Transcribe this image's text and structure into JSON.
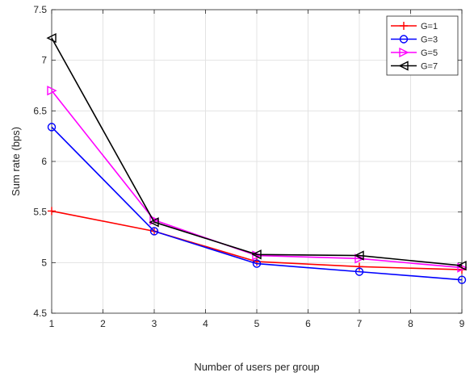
{
  "chart_data": {
    "type": "line",
    "title": "",
    "xlabel": "Number of users per group",
    "ylabel": "Sum rate (bps)",
    "xlim": [
      1,
      9
    ],
    "ylim": [
      4.5,
      7.5
    ],
    "xticks": [
      1,
      2,
      3,
      4,
      5,
      6,
      7,
      8,
      9
    ],
    "yticks": [
      4.5,
      5,
      5.5,
      6,
      6.5,
      7,
      7.5
    ],
    "x": [
      1,
      3,
      5,
      7,
      9
    ],
    "grid": true,
    "legend_position": "top-right",
    "series": [
      {
        "name": "G=1",
        "color": "#ff0000",
        "marker": "plus",
        "values": [
          5.51,
          5.31,
          5.01,
          4.96,
          4.93
        ]
      },
      {
        "name": "G=3",
        "color": "#0000ff",
        "marker": "circle",
        "values": [
          6.34,
          5.31,
          4.99,
          4.91,
          4.83
        ]
      },
      {
        "name": "G=5",
        "color": "#ff00ff",
        "marker": "triangle-right",
        "values": [
          6.7,
          5.42,
          5.07,
          5.04,
          4.95
        ]
      },
      {
        "name": "G=7",
        "color": "#000000",
        "marker": "triangle-left",
        "values": [
          7.22,
          5.4,
          5.08,
          5.07,
          4.97
        ]
      }
    ]
  }
}
